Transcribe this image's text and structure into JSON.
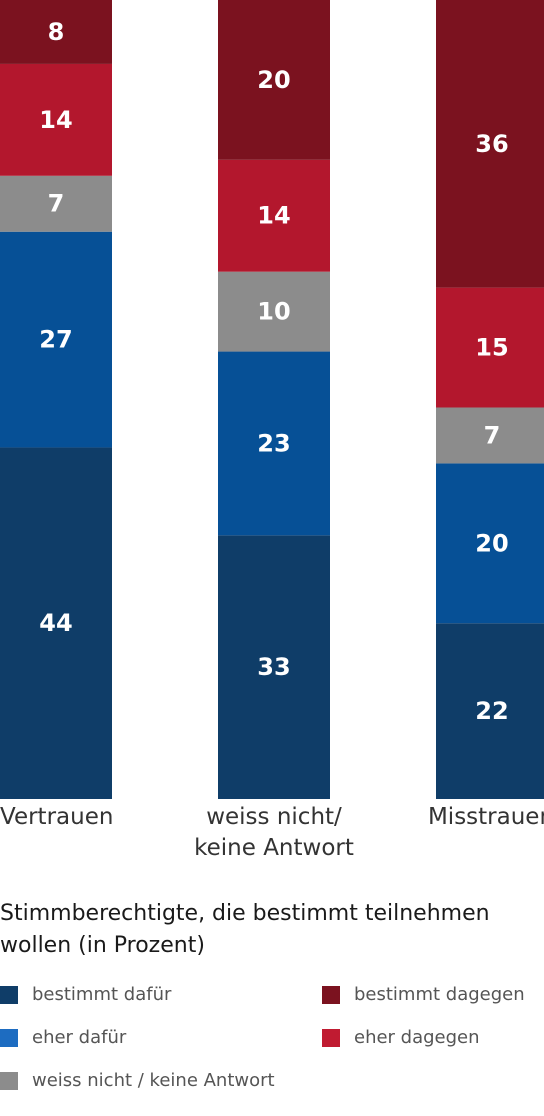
{
  "chart_data": {
    "type": "bar",
    "stacked": true,
    "title": "Stimmberechtigte, die bestimmt teilnehmen wollen (in Prozent)",
    "categories": [
      "Vertrauen",
      "weiss nicht/\nkeine Antwort",
      "Misstrauen"
    ],
    "series": [
      {
        "name": "bestimmt dafür",
        "color": "#0f3d68",
        "values": [
          44,
          33,
          22
        ]
      },
      {
        "name": "eher dafür",
        "color": "#065096",
        "values": [
          27,
          23,
          20
        ]
      },
      {
        "name": "weiss nicht / keine Antwort",
        "color": "#8c8c8c",
        "values": [
          7,
          10,
          7
        ]
      },
      {
        "name": "eher dagegen",
        "color": "#b3172d",
        "values": [
          14,
          14,
          15
        ]
      },
      {
        "name": "bestimmt dagegen",
        "color": "#7b121f",
        "values": [
          8,
          20,
          36
        ]
      }
    ],
    "ylim": [
      0,
      100
    ],
    "legend": {
      "placement": "bottom",
      "swatch_colors": {
        "bestimmt dafür": "#0f3d68",
        "eher dafür": "#1d6cc1",
        "weiss nicht / keine Antwort": "#8c8c8c",
        "eher dagegen": "#c01b31",
        "bestimmt dagegen": "#7b121f"
      }
    },
    "label_color": "#ffffff"
  }
}
